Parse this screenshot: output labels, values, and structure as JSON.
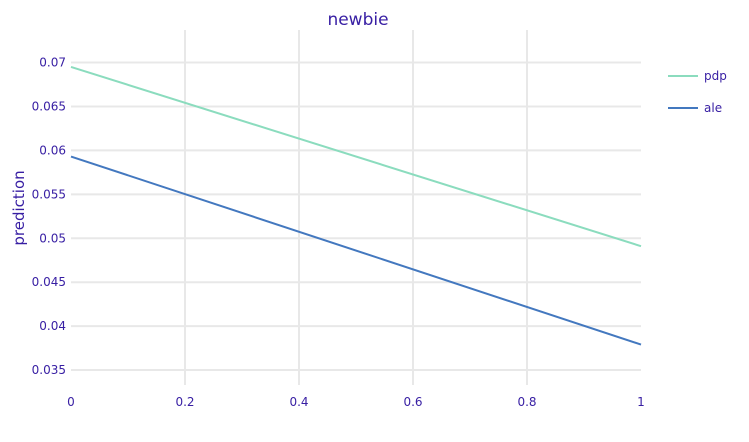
{
  "chart_data": {
    "type": "line",
    "title": "newbie",
    "xlabel": "",
    "ylabel": "prediction",
    "xlim": [
      0,
      1
    ],
    "ylim": [
      0.0333,
      0.0737
    ],
    "x_ticks": [
      0,
      0.2,
      0.4,
      0.6,
      0.8,
      1
    ],
    "x_tick_labels": [
      "0",
      "0.2",
      "0.4",
      "0.6",
      "0.8",
      "1"
    ],
    "y_ticks": [
      0.035,
      0.04,
      0.045,
      0.05,
      0.055,
      0.06,
      0.065,
      0.07
    ],
    "y_tick_labels": [
      "0.035",
      "0.04",
      "0.045",
      "0.05",
      "0.055",
      "0.06",
      "0.065",
      "0.07"
    ],
    "grid": true,
    "legend_position": "top-right",
    "series": [
      {
        "name": "pdp",
        "color": "#8bdcbe",
        "x": [
          0,
          1
        ],
        "values": [
          0.0695,
          0.0491
        ]
      },
      {
        "name": "ale",
        "color": "#4378bf",
        "x": [
          0,
          1
        ],
        "values": [
          0.0593,
          0.0379
        ]
      }
    ]
  }
}
